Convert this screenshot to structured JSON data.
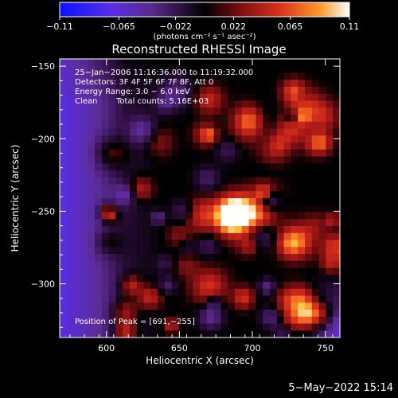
{
  "chart_data": {
    "type": "heatmap",
    "title": "Reconstructed RHESSI Image",
    "xlabel": "Heliocentric X (arcsec)",
    "ylabel": "Heliocentric Y (arcsec)",
    "xlim": [
      568,
      760
    ],
    "ylim": [
      -337,
      -145
    ],
    "x_ticks": [
      600,
      650,
      700,
      750
    ],
    "x_tick_labels": [
      "600",
      "650",
      "700",
      "750"
    ],
    "y_ticks": [
      -150,
      -200,
      -250,
      -300
    ],
    "y_tick_labels": [
      "−150",
      "−200",
      "−250",
      "−300"
    ],
    "grid": false,
    "colorbar": {
      "range": [
        -0.11,
        0.11
      ],
      "tick_values": [
        -0.11,
        -0.065,
        -0.022,
        0.022,
        0.065,
        0.11
      ],
      "tick_labels": [
        "−0.11",
        "−0.065",
        "−0.022",
        "0.022",
        "0.065",
        "0.11"
      ],
      "units_label": "(photons cm⁻² s⁻¹ asec⁻²)",
      "colors": [
        "#0a12ff",
        "#7a2bd0",
        "#4a1e6a",
        "#000000",
        "#7a0e0e",
        "#d8321c",
        "#ff9a2a",
        "#ffffff"
      ]
    },
    "annotations": {
      "time_range": "25−Jan−2006 11:16:36.000 to 11:19:32.000",
      "detectors": "Detectors: 3F 4F 5F 6F 7F 8F, Att 0",
      "energy_range": "Energy Range: 3.0 − 6.0 keV",
      "method": "Clean",
      "total_counts": "Total counts: 5.16E+03",
      "peak_position": "Position of Peak = [691,−255]"
    },
    "peak": {
      "x": 691,
      "y": -255,
      "value": 0.11
    },
    "grid_size": [
      40,
      40
    ]
  },
  "footer": {
    "date": "5−May−2022 15:14"
  }
}
